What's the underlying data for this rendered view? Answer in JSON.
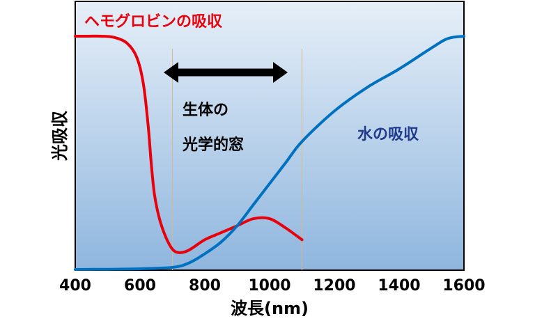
{
  "chart_data": {
    "type": "line",
    "title": "",
    "xlabel": "波長(nm)",
    "ylabel": "光吸収",
    "xlim": [
      400,
      1600
    ],
    "ylim": [
      0,
      1
    ],
    "x_ticks": [
      "400",
      "600",
      "800",
      "1000",
      "1200",
      "1400",
      "1600"
    ],
    "y_ticks_shown": false,
    "grid": false,
    "legend": "none",
    "background": "gradient (light blue top to medium blue bottom)",
    "series": [
      {
        "name": "ヘモグロビンの吸収",
        "color": "#e8000b",
        "x": [
          400,
          440,
          480,
          520,
          560,
          590,
          610,
          625,
          635,
          645,
          660,
          680,
          700,
          720,
          750,
          800,
          850,
          900,
          950,
          1000,
          1050,
          1100
        ],
        "y": [
          1.0,
          1.0,
          1.0,
          0.995,
          0.97,
          0.91,
          0.8,
          0.62,
          0.45,
          0.32,
          0.22,
          0.14,
          0.09,
          0.075,
          0.085,
          0.13,
          0.16,
          0.19,
          0.22,
          0.22,
          0.18,
          0.13
        ]
      },
      {
        "name": "水の吸収",
        "color": "#0070c0",
        "x": [
          400,
          500,
          600,
          700,
          750,
          800,
          850,
          900,
          950,
          1000,
          1050,
          1100,
          1200,
          1300,
          1400,
          1500,
          1550,
          1600
        ],
        "y": [
          0.003,
          0.004,
          0.006,
          0.012,
          0.03,
          0.07,
          0.12,
          0.19,
          0.28,
          0.37,
          0.46,
          0.55,
          0.68,
          0.78,
          0.86,
          0.95,
          0.99,
          1.0
        ]
      }
    ],
    "window": {
      "label_line1": "生体の",
      "label_line2": "光学的窓",
      "range": [
        700,
        1100
      ]
    }
  }
}
